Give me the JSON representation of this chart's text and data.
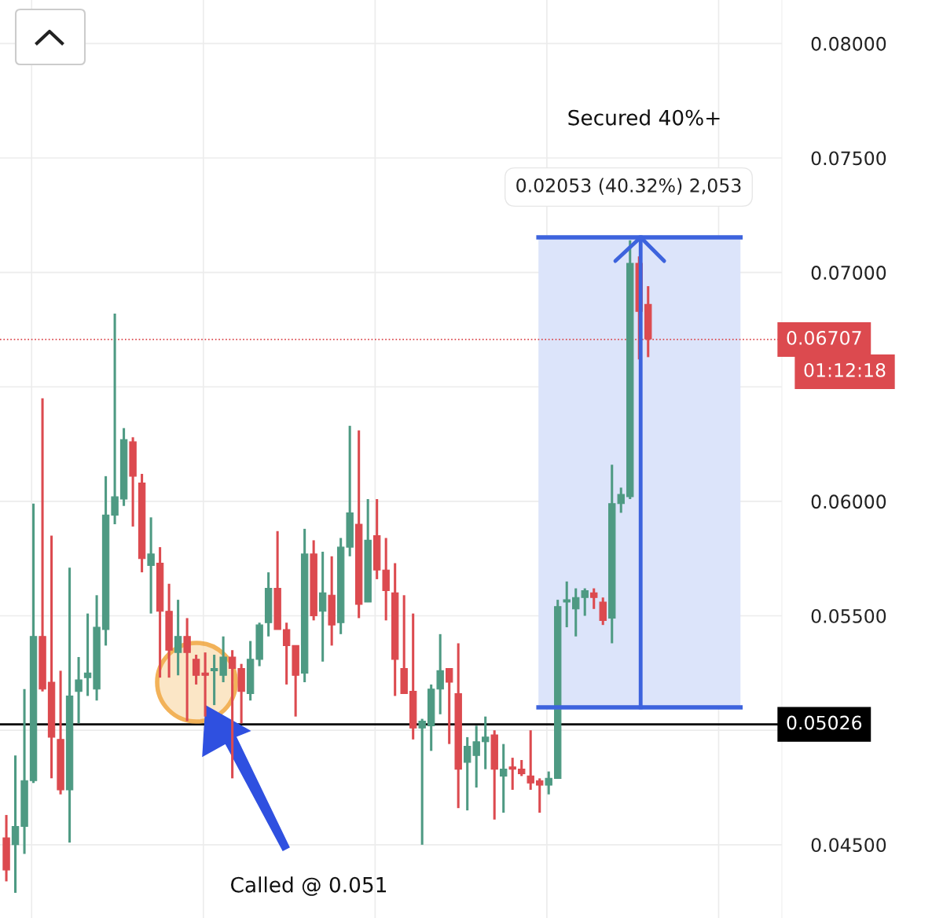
{
  "chart_data": {
    "type": "candlestick",
    "categories": [
      null,
      null,
      null,
      null,
      null,
      null,
      null,
      null,
      null,
      null,
      null,
      null,
      null,
      null,
      null,
      null,
      null,
      null,
      null,
      null,
      null,
      null,
      null,
      null,
      null,
      null,
      null,
      null,
      null,
      null,
      null,
      null,
      null,
      null,
      null,
      null,
      null,
      null,
      null,
      null,
      null,
      null,
      null,
      null,
      null,
      null,
      null,
      null,
      null,
      null,
      null,
      null,
      null,
      null,
      null,
      null,
      null,
      null,
      null,
      null,
      null,
      null,
      null,
      null,
      null,
      null,
      null,
      null,
      null,
      null,
      null,
      null,
      null,
      null,
      null,
      null,
      null,
      null,
      null,
      null,
      null,
      null,
      null,
      null,
      null,
      null
    ],
    "ohlc": [
      [
        0.0453,
        0.0463,
        0.0434,
        0.0439
      ],
      [
        0.045,
        0.0489,
        0.0429,
        0.0458
      ],
      [
        0.0458,
        0.0518,
        0.0446,
        0.0478
      ],
      [
        0.0478,
        0.0599,
        0.0477,
        0.0541
      ],
      [
        0.0541,
        0.0645,
        0.0517,
        0.0518
      ],
      [
        0.0521,
        0.0585,
        0.0479,
        0.0497
      ],
      [
        0.0496,
        0.0526,
        0.0472,
        0.0474
      ],
      [
        0.0474,
        0.0571,
        0.0451,
        0.0515
      ],
      [
        0.0517,
        0.0532,
        0.0503,
        0.0522
      ],
      [
        0.0523,
        0.0551,
        0.0515,
        0.0525
      ],
      [
        0.0518,
        0.0559,
        0.0513,
        0.0545
      ],
      [
        0.0544,
        0.0611,
        0.0537,
        0.0594
      ],
      [
        0.0594,
        0.0682,
        0.059,
        0.0602
      ],
      [
        0.0601,
        0.0632,
        0.0598,
        0.0627
      ],
      [
        0.0626,
        0.0628,
        0.0589,
        0.0611
      ],
      [
        0.0608,
        0.0612,
        0.0569,
        0.0575
      ],
      [
        0.0572,
        0.0593,
        0.0551,
        0.0577
      ],
      [
        0.0573,
        0.058,
        0.0523,
        0.0552
      ],
      [
        0.0552,
        0.0564,
        0.0523,
        0.0535
      ],
      [
        0.0534,
        0.0557,
        0.0524,
        0.0541
      ],
      [
        0.0541,
        0.0549,
        0.0504,
        0.0534
      ],
      [
        0.0531,
        0.0533,
        0.052,
        0.0524
      ],
      [
        0.0525,
        0.0534,
        0.0506,
        0.0524
      ],
      [
        0.0526,
        0.0533,
        0.0511,
        0.0527
      ],
      [
        0.0524,
        0.0541,
        0.0521,
        0.0532
      ],
      [
        0.0532,
        0.0535,
        0.0479,
        0.0527
      ],
      [
        0.0527,
        0.0529,
        0.0503,
        0.0517
      ],
      [
        0.0516,
        0.0539,
        0.0513,
        0.0531
      ],
      [
        0.0531,
        0.0547,
        0.0528,
        0.0546
      ],
      [
        0.0547,
        0.0569,
        0.0541,
        0.0562
      ],
      [
        0.0562,
        0.0587,
        0.0544,
        0.0544
      ],
      [
        0.0544,
        0.0547,
        0.052,
        0.0537
      ],
      [
        0.0537,
        0.0537,
        0.0506,
        0.0524
      ],
      [
        0.0525,
        0.0588,
        0.0521,
        0.0577
      ],
      [
        0.0577,
        0.0583,
        0.0548,
        0.055
      ],
      [
        0.0552,
        0.0578,
        0.053,
        0.056
      ],
      [
        0.0559,
        0.0576,
        0.0537,
        0.0546
      ],
      [
        0.0547,
        0.0584,
        0.0542,
        0.058
      ],
      [
        0.058,
        0.0633,
        0.0576,
        0.0595
      ],
      [
        0.059,
        0.0631,
        0.0549,
        0.0555
      ],
      [
        0.0556,
        0.0601,
        0.0556,
        0.0583
      ],
      [
        0.0585,
        0.0601,
        0.0566,
        0.057
      ],
      [
        0.057,
        0.0584,
        0.0548,
        0.0561
      ],
      [
        0.056,
        0.0573,
        0.0515,
        0.0531
      ],
      [
        0.0527,
        0.0559,
        0.0516,
        0.0516
      ],
      [
        0.0517,
        0.0551,
        0.0496,
        0.0501
      ],
      [
        0.0501,
        0.0505,
        0.045,
        0.0504
      ],
      [
        0.0502,
        0.052,
        0.0491,
        0.0518
      ],
      [
        0.0518,
        0.0542,
        0.0507,
        0.0526
      ],
      [
        0.0527,
        0.0527,
        0.0494,
        0.0521
      ],
      [
        0.0516,
        0.0538,
        0.0466,
        0.0483
      ],
      [
        0.0486,
        0.0497,
        0.0465,
        0.0493
      ],
      [
        0.0489,
        0.0502,
        0.0475,
        0.0495
      ],
      [
        0.0495,
        0.0506,
        0.0483,
        0.0497
      ],
      [
        0.0498,
        0.05,
        0.0461,
        0.0483
      ],
      [
        0.048,
        0.0494,
        0.0464,
        0.0483
      ],
      [
        0.0484,
        0.0488,
        0.0474,
        0.0483
      ],
      [
        0.0483,
        0.0487,
        0.048,
        0.0481
      ],
      [
        0.048,
        0.05,
        0.0474,
        0.0477
      ],
      [
        0.0478,
        0.0479,
        0.0464,
        0.0476
      ],
      [
        0.0476,
        0.0482,
        0.0472,
        0.0479
      ],
      [
        0.0479,
        0.0557,
        0.0479,
        0.0554
      ],
      [
        0.0556,
        0.0565,
        0.0545,
        0.0557
      ],
      [
        0.0553,
        0.0562,
        0.0541,
        0.0558
      ],
      [
        0.0558,
        0.0562,
        0.055,
        0.0561
      ],
      [
        0.056,
        0.0562,
        0.0553,
        0.0558
      ],
      [
        0.0556,
        0.0558,
        0.0546,
        0.0548
      ],
      [
        0.0549,
        0.0616,
        0.0538,
        0.0599
      ],
      [
        0.0599,
        0.0606,
        0.0595,
        0.0603
      ],
      [
        0.0602,
        0.0714,
        0.0601,
        0.0704
      ],
      [
        0.0704,
        0.0707,
        0.0662,
        0.0683
      ],
      [
        0.0686,
        0.0694,
        0.0663,
        0.0671
      ],
      null,
      null,
      null,
      null,
      null,
      null,
      null,
      null,
      null,
      null,
      null,
      null,
      null,
      null
    ],
    "colors": [
      "#dc4a4f",
      "#4e9a83",
      "#4e9a83",
      "#4e9a83",
      "#dc4a4f",
      "#dc4a4f",
      "#dc4a4f",
      "#4e9a83",
      "#4e9a83",
      "#4e9a83",
      "#4e9a83",
      "#4e9a83",
      "#4e9a83",
      "#4e9a83",
      "#dc4a4f",
      "#dc4a4f",
      "#4e9a83",
      "#dc4a4f",
      "#dc4a4f",
      "#4e9a83",
      "#dc4a4f",
      "#dc4a4f",
      "#dc4a4f",
      "#4e9a83",
      "#4e9a83",
      "#dc4a4f",
      "#dc4a4f",
      "#4e9a83",
      "#4e9a83",
      "#4e9a83",
      "#dc4a4f",
      "#dc4a4f",
      "#dc4a4f",
      "#4e9a83",
      "#dc4a4f",
      "#4e9a83",
      "#dc4a4f",
      "#4e9a83",
      "#4e9a83",
      "#dc4a4f",
      "#4e9a83",
      "#dc4a4f",
      "#dc4a4f",
      "#dc4a4f",
      "#dc4a4f",
      "#dc4a4f",
      "#4e9a83",
      "#4e9a83",
      "#4e9a83",
      "#dc4a4f",
      "#dc4a4f",
      "#4e9a83",
      "#4e9a83",
      "#4e9a83",
      "#dc4a4f",
      "#4e9a83",
      "#dc4a4f",
      "#dc4a4f",
      "#dc4a4f",
      "#dc4a4f",
      "#4e9a83",
      "#4e9a83",
      "#4e9a83",
      "#4e9a83",
      "#4e9a83",
      "#dc4a4f",
      "#dc4a4f",
      "#4e9a83",
      "#4e9a83",
      "#4e9a83",
      "#dc4a4f",
      "#dc4a4f",
      null,
      null,
      null,
      null,
      null,
      null,
      null,
      null,
      null,
      null,
      null,
      null,
      null,
      null
    ],
    "ylim": [
      0.0418,
      0.0819
    ],
    "yticks": [
      {
        "value": 0.045,
        "label": "0.04500"
      },
      {
        "value": 0.05,
        "label": null
      },
      {
        "value": 0.055,
        "label": "0.05500"
      },
      {
        "value": 0.06,
        "label": "0.06000"
      },
      {
        "value": 0.065,
        "label": null
      },
      {
        "value": 0.07,
        "label": "0.07000"
      },
      {
        "value": 0.075,
        "label": "0.07500"
      },
      {
        "value": 0.08,
        "label": "0.08000"
      }
    ],
    "grid": true,
    "ref_lines": [
      {
        "axis": "y",
        "value": 0.05026,
        "label": "0.05026",
        "color": "#000000",
        "line_style": "solid"
      },
      {
        "axis": "y",
        "value": 0.06707,
        "label": "0.06707",
        "color": "#dc4a4f",
        "line_style": "dotted"
      }
    ],
    "bands": [
      {
        "axis": "y",
        "from": 0.051,
        "to": 0.07153,
        "label": "0.02053 (40.32%) 2,053",
        "color": "#dce4fa"
      }
    ],
    "annotations": [
      "Secured 40%+",
      "Called @ 0.051",
      "01:12:18"
    ]
  }
}
